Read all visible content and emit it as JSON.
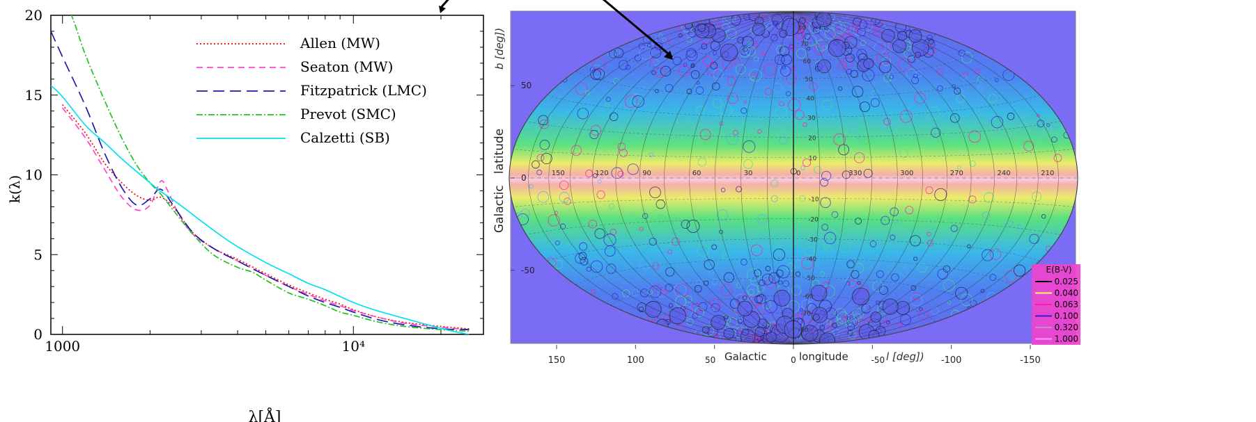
{
  "chart_data": [
    {
      "type": "line",
      "xlabel": "λ[Å]",
      "ylabel": "k(λ)",
      "xscale": "log",
      "xlim": [
        912,
        28000
      ],
      "ylim": [
        0,
        20
      ],
      "x_ticks": [
        {
          "value": 1000,
          "label": "1000"
        },
        {
          "value": 10000,
          "label": "10⁴"
        }
      ],
      "y_ticks": [
        {
          "value": 0,
          "label": "0"
        },
        {
          "value": 5,
          "label": "5"
        },
        {
          "value": 10,
          "label": "10"
        },
        {
          "value": 15,
          "label": "15"
        },
        {
          "value": 20,
          "label": "20"
        }
      ],
      "legend_position": "top-right",
      "series": [
        {
          "name": "Allen (MW)",
          "color": "#ff0000",
          "dash": "2,3",
          "points": [
            [
              1000,
              14.4
            ],
            [
              1200,
              12.6
            ],
            [
              1400,
              10.7
            ],
            [
              1600,
              9.5
            ],
            [
              1800,
              8.7
            ],
            [
              2000,
              8.4
            ],
            [
              2175,
              8.6
            ],
            [
              2400,
              8.0
            ],
            [
              2800,
              6.4
            ],
            [
              3300,
              5.4
            ],
            [
              4000,
              4.7
            ],
            [
              5000,
              3.8
            ],
            [
              6000,
              3.1
            ],
            [
              7000,
              2.6
            ],
            [
              8000,
              2.2
            ],
            [
              9000,
              1.9
            ],
            [
              10000,
              1.55
            ],
            [
              12000,
              1.1
            ],
            [
              15000,
              0.75
            ],
            [
              20000,
              0.5
            ],
            [
              25000,
              0.35
            ]
          ]
        },
        {
          "name": "Seaton (MW)",
          "color": "#ff44cc",
          "dash": "9,6",
          "points": [
            [
              1000,
              14.2
            ],
            [
              1200,
              12.3
            ],
            [
              1400,
              10.3
            ],
            [
              1600,
              8.6
            ],
            [
              1800,
              7.8
            ],
            [
              2000,
              8.1
            ],
            [
              2175,
              9.6
            ],
            [
              2300,
              9.0
            ],
            [
              2500,
              7.6
            ],
            [
              2800,
              6.3
            ],
            [
              3300,
              5.4
            ],
            [
              4000,
              4.6
            ],
            [
              5000,
              3.7
            ],
            [
              6000,
              3.0
            ],
            [
              7000,
              2.5
            ],
            [
              8000,
              2.1
            ],
            [
              9000,
              1.8
            ],
            [
              10000,
              1.5
            ],
            [
              12000,
              1.1
            ],
            [
              15000,
              0.7
            ],
            [
              20000,
              0.45
            ],
            [
              25000,
              0.3
            ]
          ]
        },
        {
          "name": "Fitzpatrick (LMC)",
          "color": "#1a1aaa",
          "dash": "16,8",
          "points": [
            [
              912,
              19.0
            ],
            [
              1000,
              17.4
            ],
            [
              1200,
              14.3
            ],
            [
              1400,
              11.3
            ],
            [
              1600,
              9.2
            ],
            [
              1800,
              8.1
            ],
            [
              2000,
              8.5
            ],
            [
              2175,
              9.1
            ],
            [
              2400,
              8.1
            ],
            [
              2800,
              6.4
            ],
            [
              3300,
              5.4
            ],
            [
              4000,
              4.6
            ],
            [
              5000,
              3.7
            ],
            [
              6000,
              3.0
            ],
            [
              7000,
              2.4
            ],
            [
              8000,
              2.0
            ],
            [
              9000,
              1.7
            ],
            [
              10000,
              1.4
            ],
            [
              12000,
              0.95
            ],
            [
              15000,
              0.6
            ],
            [
              20000,
              0.35
            ],
            [
              25000,
              0.3
            ]
          ]
        },
        {
          "name": "Prevot (SMC)",
          "color": "#22c022",
          "dash": "9,3,2,3",
          "points": [
            [
              1000,
              21.5
            ],
            [
              1100,
              19.5
            ],
            [
              1200,
              17.5
            ],
            [
              1400,
              14.6
            ],
            [
              1600,
              12.3
            ],
            [
              1800,
              10.6
            ],
            [
              2000,
              9.5
            ],
            [
              2175,
              8.8
            ],
            [
              2400,
              7.8
            ],
            [
              2800,
              6.3
            ],
            [
              3300,
              5.0
            ],
            [
              4000,
              4.2
            ],
            [
              4500,
              3.9
            ],
            [
              5000,
              3.4
            ],
            [
              6000,
              2.6
            ],
            [
              7000,
              2.2
            ],
            [
              8000,
              1.8
            ],
            [
              9000,
              1.4
            ],
            [
              10000,
              1.2
            ],
            [
              12000,
              0.8
            ],
            [
              15000,
              0.5
            ],
            [
              20000,
              0.3
            ],
            [
              25000,
              0.2
            ]
          ]
        },
        {
          "name": "Calzetti (SB)",
          "color": "#00e0f0",
          "dash": "",
          "points": [
            [
              912,
              15.6
            ],
            [
              1000,
              14.9
            ],
            [
              1200,
              13.1
            ],
            [
              1400,
              12.0
            ],
            [
              1600,
              11.0
            ],
            [
              1800,
              10.2
            ],
            [
              2000,
              9.5
            ],
            [
              2200,
              8.9
            ],
            [
              2500,
              8.2
            ],
            [
              3000,
              7.1
            ],
            [
              3500,
              6.2
            ],
            [
              4000,
              5.5
            ],
            [
              5000,
              4.5
            ],
            [
              6000,
              3.8
            ],
            [
              7000,
              3.2
            ],
            [
              8000,
              2.8
            ],
            [
              10000,
              2.0
            ],
            [
              12000,
              1.5
            ],
            [
              15000,
              1.0
            ],
            [
              18000,
              0.6
            ],
            [
              22000,
              0.2
            ],
            [
              25000,
              0.0
            ]
          ]
        }
      ]
    },
    {
      "type": "map",
      "projection": "Hammer-Aitoff all-sky",
      "ylabel_italic": "b [deg])",
      "ylabel": "Galactic   latitude",
      "xlabel_parts": [
        "Galactic",
        "longitude"
      ],
      "xlabel_italic": "l [deg])",
      "x_axis_ticks": [
        150,
        100,
        50,
        0,
        -50,
        -100,
        -150
      ],
      "y_axis_ticks": [
        50,
        0,
        -50
      ],
      "equator_labels": [
        "150",
        "120",
        "90",
        "60",
        "30",
        "0",
        "330",
        "300",
        "270",
        "240",
        "210"
      ],
      "meridian_labels": [
        "80",
        "70",
        "60",
        "50",
        "40",
        "30",
        "20",
        "10",
        "-10",
        "-20",
        "-30",
        "-40",
        "-50",
        "-60",
        "-70",
        "-80"
      ],
      "legend": {
        "title": "E(B-V)",
        "entries": [
          {
            "label": "0.025",
            "color": "#000000"
          },
          {
            "label": "0.040",
            "color": "#ffff66"
          },
          {
            "label": "0.063",
            "color": "#ff1aaa"
          },
          {
            "label": "0.100",
            "color": "#3320cc"
          },
          {
            "label": "0.320",
            "color": "#cc88cc"
          },
          {
            "label": "1.000",
            "color": "#ff99ff"
          }
        ]
      },
      "background_color": "#7b6cf5"
    }
  ]
}
